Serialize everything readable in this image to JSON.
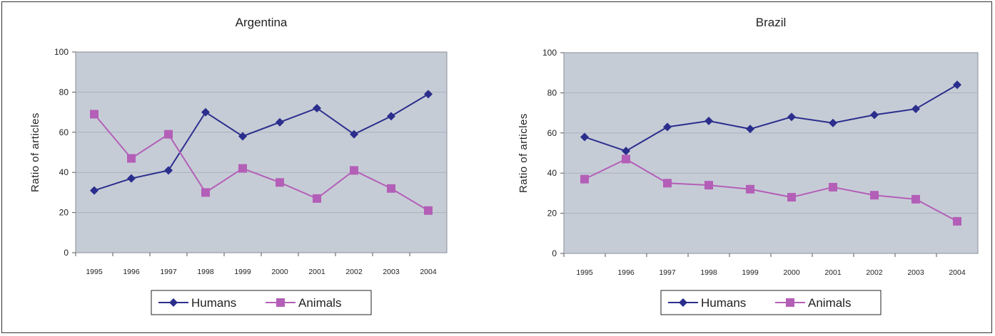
{
  "chart_data": [
    {
      "type": "line",
      "title": "Argentina",
      "xlabel": "",
      "ylabel": "Ratio of articles",
      "ylim": [
        0,
        100
      ],
      "yticks": [
        0,
        20,
        40,
        60,
        80,
        100
      ],
      "categories": [
        "1995",
        "1996",
        "1997",
        "1998",
        "1999",
        "2000",
        "2001",
        "2002",
        "2003",
        "2004"
      ],
      "grid": true,
      "legend": "bottom",
      "series": [
        {
          "name": "Humans",
          "marker": "diamond",
          "color": "#2b2e8c",
          "values": [
            31,
            37,
            41,
            70,
            58,
            65,
            72,
            59,
            68,
            79
          ]
        },
        {
          "name": "Animals",
          "marker": "square",
          "color": "#b35fb7",
          "values": [
            69,
            47,
            59,
            30,
            42,
            35,
            27,
            41,
            32,
            21
          ]
        }
      ]
    },
    {
      "type": "line",
      "title": "Brazil",
      "xlabel": "",
      "ylabel": "Ratio of articles",
      "ylim": [
        0,
        100
      ],
      "yticks": [
        0,
        20,
        40,
        60,
        80,
        100
      ],
      "categories": [
        "1995",
        "1996",
        "1997",
        "1998",
        "1999",
        "2000",
        "2001",
        "2002",
        "2003",
        "2004"
      ],
      "grid": true,
      "legend": "bottom",
      "series": [
        {
          "name": "Humans",
          "marker": "diamond",
          "color": "#2b2e8c",
          "values": [
            58,
            51,
            63,
            66,
            62,
            68,
            65,
            69,
            72,
            84
          ]
        },
        {
          "name": "Animals",
          "marker": "square",
          "color": "#b35fb7",
          "values": [
            37,
            47,
            35,
            34,
            32,
            28,
            33,
            29,
            27,
            16
          ]
        }
      ]
    }
  ],
  "colors": {
    "plot_background": "#c6ccd6",
    "gridline": "#aab2bf"
  }
}
